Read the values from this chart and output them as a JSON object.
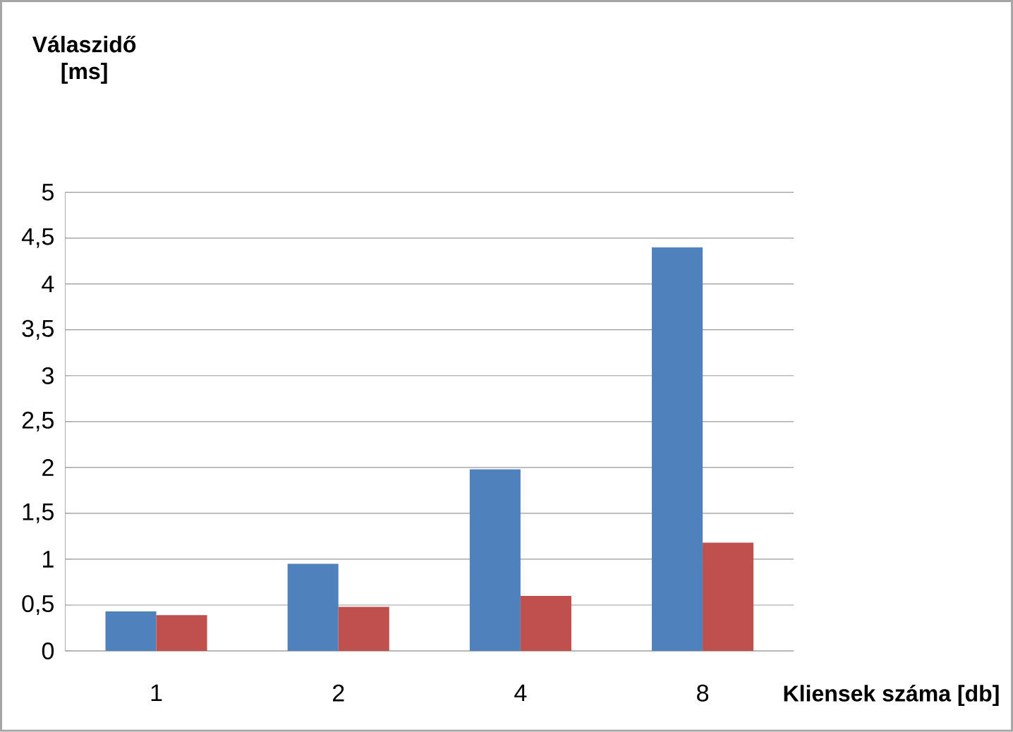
{
  "chart_data": {
    "type": "bar",
    "xlabel": "Kliensek száma [db]",
    "ylabel": "Válaszidő [ms]",
    "categories": [
      "1",
      "2",
      "4",
      "8"
    ],
    "series": [
      {
        "color": "#4f81bd",
        "values": [
          0.43,
          0.95,
          1.98,
          4.4
        ]
      },
      {
        "color": "#c0504d",
        "values": [
          0.39,
          0.48,
          0.6,
          1.18
        ]
      }
    ],
    "ylim": [
      0,
      5
    ],
    "yticks": [
      0,
      {
        "value": 0.5,
        "label": "0,5"
      },
      1,
      {
        "value": 1.5,
        "label": "1,5"
      },
      2,
      {
        "value": 2.5,
        "label": "2,5"
      },
      3,
      {
        "value": 3.5,
        "label": "3,5"
      },
      4,
      {
        "value": 4.5,
        "label": "4,5"
      },
      5
    ],
    "grid": "y"
  }
}
